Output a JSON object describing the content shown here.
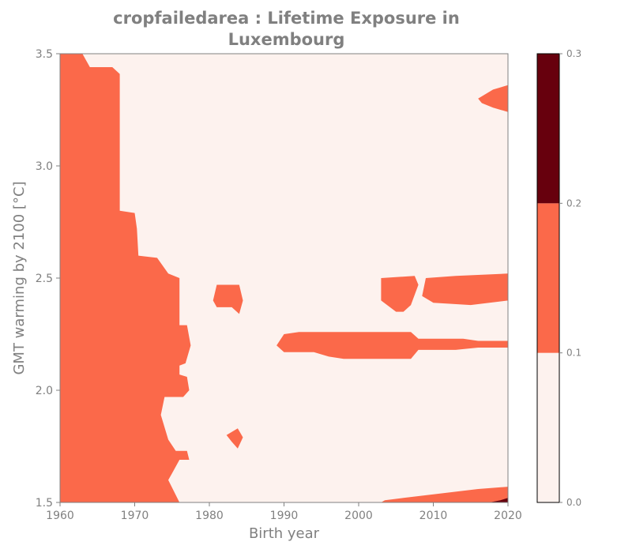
{
  "chart_data": {
    "type": "heatmap",
    "title": "cropfailedarea : Lifetime Exposure in Luxembourg",
    "xlabel": "Birth year",
    "ylabel": "GMT warming by 2100 [°C]",
    "xlim": [
      1960,
      2020
    ],
    "ylim": [
      1.5,
      3.5
    ],
    "xticks": [
      "1960",
      "1970",
      "1980",
      "1990",
      "2000",
      "2010",
      "2020"
    ],
    "yticks": [
      "1.5",
      "2.0",
      "2.5",
      "3.0",
      "3.5"
    ],
    "grid": false,
    "colorbar": {
      "levels": [
        0.0,
        0.1,
        0.2,
        0.3
      ],
      "tick_labels": [
        "0.0",
        "0.1",
        "0.2",
        "0.3"
      ],
      "colors": [
        "#fdf2ee",
        "#fb694a",
        "#67000d"
      ]
    },
    "regions": [
      {
        "level": 1,
        "label": "exposure 0.1–0.2, early birth years",
        "points": [
          [
            1960,
            3.5
          ],
          [
            1963,
            3.5
          ],
          [
            1964,
            3.44
          ],
          [
            1967,
            3.44
          ],
          [
            1968,
            3.41
          ],
          [
            1968,
            2.8
          ],
          [
            1970,
            2.79
          ],
          [
            1970.3,
            2.72
          ],
          [
            1970.5,
            2.6
          ],
          [
            1973,
            2.59
          ],
          [
            1974.5,
            2.52
          ],
          [
            1976,
            2.5
          ],
          [
            1976,
            2.29
          ],
          [
            1977,
            2.29
          ],
          [
            1977.5,
            2.2
          ],
          [
            1976.8,
            2.12
          ],
          [
            1976,
            2.11
          ],
          [
            1976,
            2.07
          ],
          [
            1977,
            2.06
          ],
          [
            1977.3,
            2.0
          ],
          [
            1976.5,
            1.97
          ],
          [
            1974,
            1.97
          ],
          [
            1973.5,
            1.89
          ],
          [
            1974.5,
            1.78
          ],
          [
            1975.5,
            1.73
          ],
          [
            1977,
            1.73
          ],
          [
            1977.3,
            1.69
          ],
          [
            1976,
            1.69
          ],
          [
            1975,
            1.63
          ],
          [
            1974.5,
            1.6
          ],
          [
            1976,
            1.5
          ],
          [
            1960,
            1.5
          ]
        ]
      },
      {
        "level": 1,
        "label": "exposure 0.1–0.2, upper-right lobe",
        "points": [
          [
            2016,
            3.3
          ],
          [
            2018,
            3.34
          ],
          [
            2020,
            3.36
          ],
          [
            2020,
            3.24
          ],
          [
            2018,
            3.26
          ],
          [
            2016.5,
            3.28
          ]
        ]
      },
      {
        "level": 1,
        "label": "exposure 0.1–0.2, around 1983 at 2.4 °C",
        "points": [
          [
            1980.5,
            2.4
          ],
          [
            1981,
            2.47
          ],
          [
            1984,
            2.47
          ],
          [
            1984.5,
            2.4
          ],
          [
            1984,
            2.34
          ],
          [
            1983,
            2.37
          ],
          [
            1981,
            2.37
          ]
        ]
      },
      {
        "level": 1,
        "label": "exposure 0.1–0.2, around 1983 at 1.8 °C",
        "points": [
          [
            1982.3,
            1.8
          ],
          [
            1983.8,
            1.83
          ],
          [
            1984.5,
            1.79
          ],
          [
            1983.8,
            1.74
          ],
          [
            1983,
            1.77
          ]
        ]
      },
      {
        "level": 1,
        "label": "exposure 0.1–0.2, 2004–2008 at 2.45 °C",
        "points": [
          [
            2003,
            2.5
          ],
          [
            2007.5,
            2.51
          ],
          [
            2008,
            2.47
          ],
          [
            2007,
            2.38
          ],
          [
            2006,
            2.35
          ],
          [
            2005,
            2.35
          ],
          [
            2003,
            2.4
          ]
        ]
      },
      {
        "level": 1,
        "label": "exposure 0.1–0.2, 2009–2020 at 2.45 °C",
        "points": [
          [
            2009,
            2.5
          ],
          [
            2013,
            2.51
          ],
          [
            2020,
            2.52
          ],
          [
            2020,
            2.4
          ],
          [
            2015,
            2.38
          ],
          [
            2010,
            2.39
          ],
          [
            2008.5,
            2.42
          ]
        ]
      },
      {
        "level": 1,
        "label": "exposure 0.1–0.2, horizontal band at 2.2 °C",
        "points": [
          [
            1989,
            2.2
          ],
          [
            1990,
            2.25
          ],
          [
            1992,
            2.26
          ],
          [
            2007,
            2.26
          ],
          [
            2008,
            2.23
          ],
          [
            2014,
            2.23
          ],
          [
            2016,
            2.22
          ],
          [
            2020,
            2.22
          ],
          [
            2020,
            2.19
          ],
          [
            2016,
            2.19
          ],
          [
            2013,
            2.18
          ],
          [
            2008,
            2.18
          ],
          [
            2007,
            2.14
          ],
          [
            1998,
            2.14
          ],
          [
            1996,
            2.15
          ],
          [
            1994,
            2.17
          ],
          [
            1990,
            2.17
          ]
        ]
      },
      {
        "level": 1,
        "label": "exposure 0.1–0.2, bottom-right",
        "points": [
          [
            2003,
            1.5
          ],
          [
            2003.5,
            1.51
          ],
          [
            2006,
            1.52
          ],
          [
            2011,
            1.54
          ],
          [
            2016,
            1.56
          ],
          [
            2020,
            1.57
          ],
          [
            2020,
            1.5
          ]
        ]
      },
      {
        "level": 2,
        "label": "exposure 0.2–0.3, bottom-right corner",
        "points": [
          [
            2017.5,
            1.5
          ],
          [
            2019,
            1.51
          ],
          [
            2020,
            1.52
          ],
          [
            2020,
            1.5
          ]
        ]
      }
    ]
  }
}
